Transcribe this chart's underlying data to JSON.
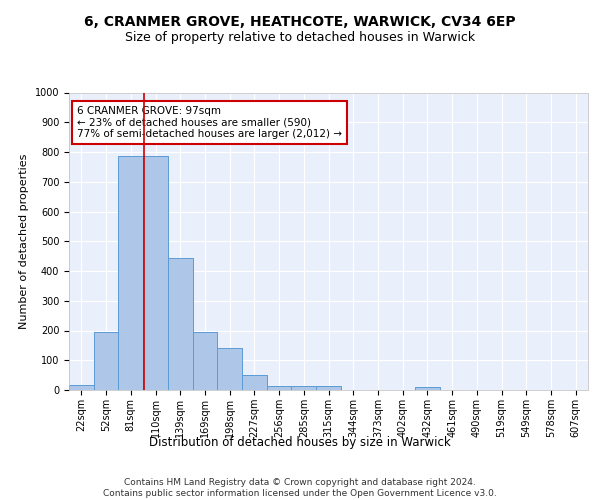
{
  "title1": "6, CRANMER GROVE, HEATHCOTE, WARWICK, CV34 6EP",
  "title2": "Size of property relative to detached houses in Warwick",
  "xlabel": "Distribution of detached houses by size in Warwick",
  "ylabel": "Number of detached properties",
  "categories": [
    "22sqm",
    "52sqm",
    "81sqm",
    "110sqm",
    "139sqm",
    "169sqm",
    "198sqm",
    "227sqm",
    "256sqm",
    "285sqm",
    "315sqm",
    "344sqm",
    "373sqm",
    "402sqm",
    "432sqm",
    "461sqm",
    "490sqm",
    "519sqm",
    "549sqm",
    "578sqm",
    "607sqm"
  ],
  "bar_values": [
    18,
    195,
    785,
    785,
    445,
    195,
    140,
    50,
    15,
    12,
    12,
    0,
    0,
    0,
    10,
    0,
    0,
    0,
    0,
    0,
    0
  ],
  "bar_color": "#aec6e8",
  "bar_edge_color": "#5b9bd5",
  "vline_color": "#cc0000",
  "ylim": [
    0,
    1000
  ],
  "yticks": [
    0,
    100,
    200,
    300,
    400,
    500,
    600,
    700,
    800,
    900,
    1000
  ],
  "annotation_text": "6 CRANMER GROVE: 97sqm\n← 23% of detached houses are smaller (590)\n77% of semi-detached houses are larger (2,012) →",
  "annotation_box_color": "#ffffff",
  "annotation_box_edge": "#cc0000",
  "footer_text": "Contains HM Land Registry data © Crown copyright and database right 2024.\nContains public sector information licensed under the Open Government Licence v3.0.",
  "bg_color": "#eaf0fb",
  "grid_color": "#ffffff",
  "title1_fontsize": 10,
  "title2_fontsize": 9,
  "xlabel_fontsize": 8.5,
  "ylabel_fontsize": 8,
  "tick_fontsize": 7,
  "annotation_fontsize": 7.5,
  "footer_fontsize": 6.5
}
